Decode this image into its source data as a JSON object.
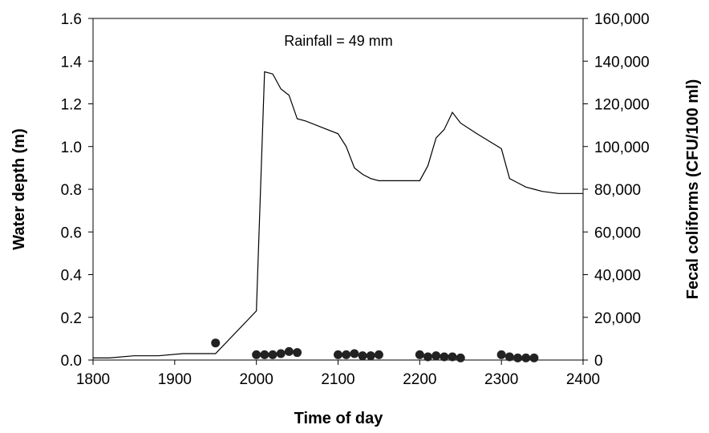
{
  "chart_data": {
    "type": "line",
    "annotation": "Rainfall = 49 mm",
    "xlabel": "Time of day",
    "ylabel_left": "Water depth (m)",
    "ylabel_right": "Fecal coliforms (CFU/100 ml)",
    "xlim": [
      1800,
      2400
    ],
    "ylim_left": [
      0,
      1.6
    ],
    "ylim_right": [
      0,
      160000
    ],
    "x_ticks": [
      "1800",
      "1900",
      "2000",
      "2100",
      "2200",
      "2300",
      "2400"
    ],
    "x_tick_values": [
      1800,
      1900,
      2000,
      2100,
      2200,
      2300,
      2400
    ],
    "y_left_ticks": [
      "0.0",
      "0.2",
      "0.4",
      "0.6",
      "0.8",
      "1.0",
      "1.2",
      "1.4",
      "1.6"
    ],
    "y_left_tick_values": [
      0,
      0.2,
      0.4,
      0.6,
      0.8,
      1.0,
      1.2,
      1.4,
      1.6
    ],
    "y_right_ticks": [
      "0",
      "20,000",
      "40,000",
      "60,000",
      "80,000",
      "100,000",
      "120,000",
      "140,000",
      "160,000"
    ],
    "y_right_tick_values": [
      0,
      20000,
      40000,
      60000,
      80000,
      100000,
      120000,
      140000,
      160000
    ],
    "grid": false,
    "legend": "none",
    "series": [
      {
        "axis": "left",
        "type": "line",
        "color": "#000000",
        "x": [
          1800,
          1820,
          1850,
          1880,
          1910,
          1950,
          2000,
          2010,
          2020,
          2030,
          2040,
          2050,
          2060,
          2080,
          2100,
          2110,
          2120,
          2130,
          2140,
          2150,
          2160,
          2180,
          2200,
          2210,
          2220,
          2230,
          2240,
          2250,
          2270,
          2300,
          2310,
          2320,
          2330,
          2340,
          2350,
          2370,
          2400
        ],
        "y": [
          0.01,
          0.01,
          0.02,
          0.02,
          0.03,
          0.03,
          0.23,
          1.35,
          1.34,
          1.27,
          1.24,
          1.13,
          1.12,
          1.09,
          1.06,
          1.0,
          0.9,
          0.87,
          0.85,
          0.84,
          0.84,
          0.84,
          0.84,
          0.91,
          1.04,
          1.08,
          1.16,
          1.11,
          1.06,
          0.99,
          0.85,
          0.83,
          0.81,
          0.8,
          0.79,
          0.78,
          0.78
        ]
      },
      {
        "axis": "right",
        "type": "scatter",
        "color": "#222222",
        "x": [
          1950,
          2000,
          2010,
          2020,
          2030,
          2040,
          2050,
          2100,
          2110,
          2120,
          2130,
          2140,
          2150,
          2200,
          2210,
          2220,
          2230,
          2240,
          2250,
          2300,
          2310,
          2320,
          2330,
          2340
        ],
        "y": [
          8000,
          2500,
          2500,
          2500,
          3000,
          4000,
          3500,
          2500,
          2500,
          3000,
          2000,
          2000,
          2500,
          2500,
          1500,
          2000,
          1500,
          1500,
          1000,
          2500,
          1500,
          1000,
          1000,
          1000
        ]
      }
    ]
  }
}
